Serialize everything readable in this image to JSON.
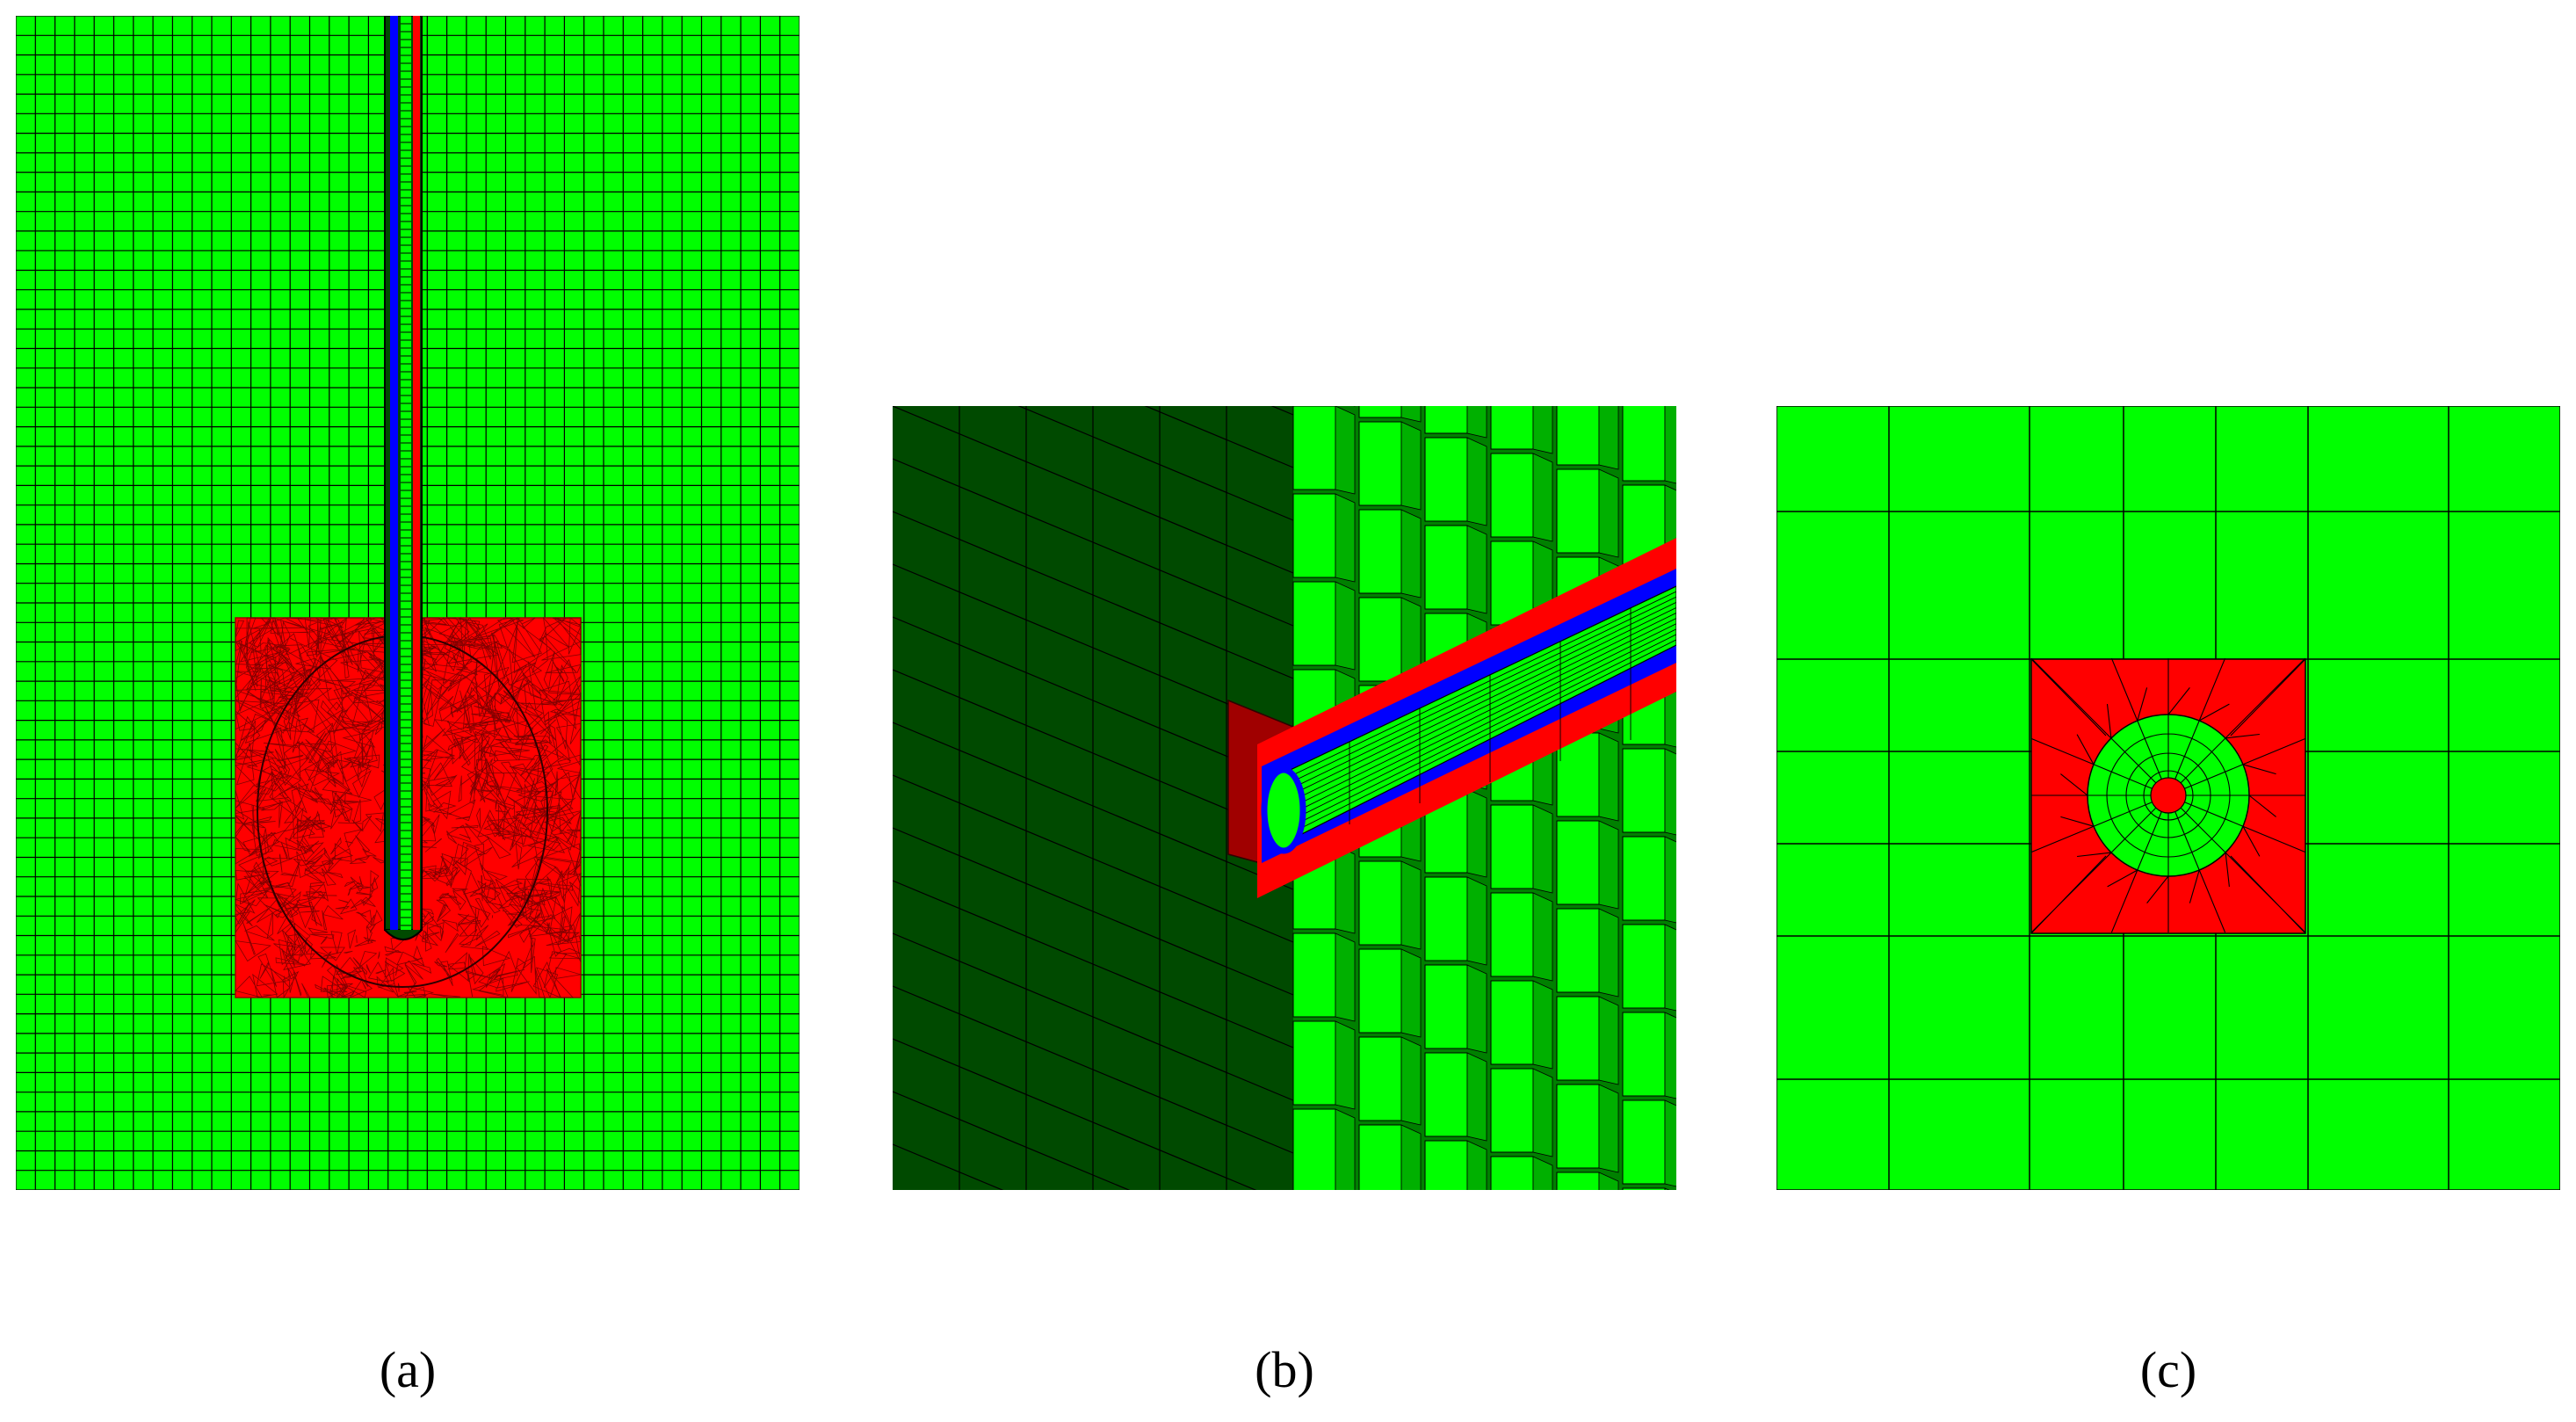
{
  "colors": {
    "mesh_green": "#00ff00",
    "dark_green": "#004a00",
    "shadow_green": "#008000",
    "mesh_red": "#ff0000",
    "dark_red": "#a00000",
    "blue": "#0000ff",
    "grid_line": "#000000"
  },
  "panels": [
    {
      "id": "a",
      "caption": "(a)"
    },
    {
      "id": "b",
      "caption": "(b)"
    },
    {
      "id": "c",
      "caption": "(c)"
    }
  ]
}
